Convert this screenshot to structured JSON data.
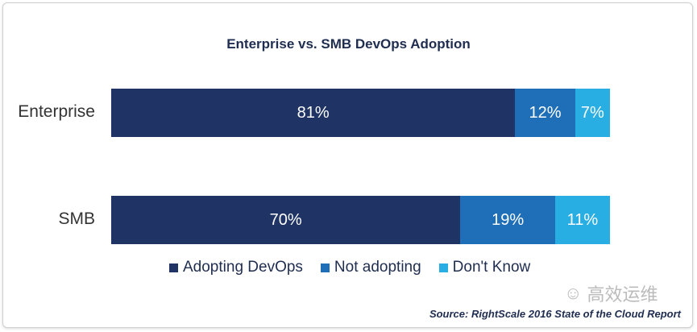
{
  "chart_data": {
    "type": "bar",
    "orientation": "horizontal-stacked",
    "title": "Enterprise vs. SMB DevOps Adoption",
    "categories": [
      "Enterprise",
      "SMB"
    ],
    "series": [
      {
        "name": "Adopting DevOps",
        "values": [
          81,
          70
        ],
        "color": "#1f3464"
      },
      {
        "name": "Not adopting",
        "values": [
          12,
          19
        ],
        "color": "#1f6fb8"
      },
      {
        "name": "Don't Know",
        "values": [
          7,
          11
        ],
        "color": "#29aee3"
      }
    ],
    "value_suffix": "%",
    "xlim": [
      0,
      100
    ],
    "legend_position": "bottom",
    "grid": false
  },
  "source": "Source: RightScale 2016 State of the Cloud Report",
  "watermark": "高效运维"
}
